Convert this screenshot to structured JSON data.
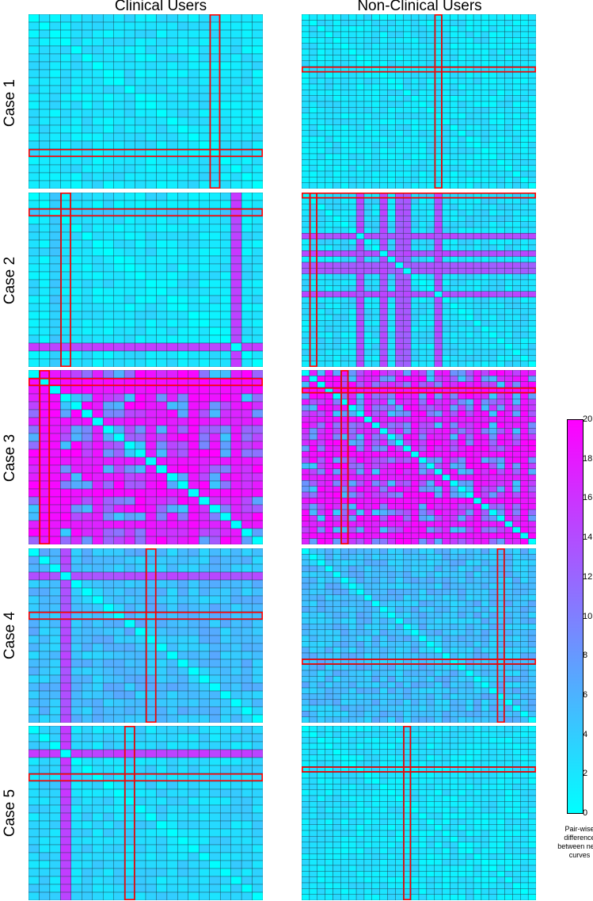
{
  "columns": [
    "Clinical Users",
    "Non-Clinical Users"
  ],
  "rows": [
    "Case 1",
    "Case 2",
    "Case 3",
    "Case 4",
    "Case 5"
  ],
  "colorbar": {
    "label": "Pair-wise difference between neck curves",
    "min": 0,
    "max": 20,
    "ticks": [
      "20",
      "18",
      "16",
      "14",
      "12",
      "10",
      "8",
      "6",
      "4",
      "2",
      "0"
    ],
    "colormap": [
      "#00ffff",
      "#ff00ff"
    ]
  },
  "highlight_color": "#ff0000",
  "chart_data": [
    {
      "type": "heatmap",
      "row": "Case 1",
      "column": "Clinical Users",
      "size": 22,
      "level": 2,
      "variation": 1.5,
      "outlier_indices": [],
      "outlier_values": [],
      "highlighted_row": 17,
      "highlighted_col": 17,
      "vmin": 0,
      "vmax": 20
    },
    {
      "type": "heatmap",
      "row": "Case 1",
      "column": "Non-Clinical Users",
      "size": 30,
      "level": 2,
      "variation": 1.5,
      "outlier_indices": [],
      "outlier_values": [],
      "highlighted_row": 9,
      "highlighted_col": 17,
      "vmin": 0,
      "vmax": 20
    },
    {
      "type": "heatmap",
      "row": "Case 2",
      "column": "Clinical Users",
      "size": 22,
      "level": 2,
      "variation": 1.5,
      "outlier_indices": [
        19,
        2
      ],
      "outlier_values": [
        15,
        4
      ],
      "highlighted_row": 2,
      "highlighted_col": 3,
      "vmin": 0,
      "vmax": 20
    },
    {
      "type": "heatmap",
      "row": "Case 2",
      "column": "Non-Clinical Users",
      "size": 30,
      "level": 2.5,
      "variation": 1.5,
      "outlier_indices": [
        10,
        13,
        17,
        7,
        12
      ],
      "outlier_values": [
        14,
        13,
        14,
        14,
        13
      ],
      "highlighted_row": 0,
      "highlighted_col": 1,
      "vmin": 0,
      "vmax": 20
    },
    {
      "type": "heatmap",
      "row": "Case 3",
      "column": "Clinical Users",
      "size": 22,
      "level": 13,
      "variation": 9,
      "outlier_indices": [
        1,
        2,
        6,
        11,
        15,
        19
      ],
      "outlier_values": [
        19,
        19,
        18,
        18,
        19,
        18
      ],
      "highlighted_row": 1,
      "highlighted_col": 1,
      "vmin": 0,
      "vmax": 20
    },
    {
      "type": "heatmap",
      "row": "Case 3",
      "column": "Non-Clinical Users",
      "size": 30,
      "level": 13,
      "variation": 9,
      "outlier_indices": [
        3,
        8,
        14,
        18,
        22,
        26,
        28
      ],
      "outlier_values": [
        19,
        18,
        19,
        18,
        19,
        18,
        19
      ],
      "highlighted_row": 3,
      "highlighted_col": 5,
      "vmin": 0,
      "vmax": 20
    },
    {
      "type": "heatmap",
      "row": "Case 4",
      "column": "Clinical Users",
      "size": 22,
      "level": 5,
      "variation": 2,
      "outlier_indices": [
        3
      ],
      "outlier_values": [
        14
      ],
      "highlighted_row": 8,
      "highlighted_col": 11,
      "vmin": 0,
      "vmax": 20
    },
    {
      "type": "heatmap",
      "row": "Case 4",
      "column": "Non-Clinical Users",
      "size": 30,
      "level": 5,
      "variation": 2,
      "outlier_indices": [],
      "outlier_values": [],
      "highlighted_row": 19,
      "highlighted_col": 25,
      "vmin": 0,
      "vmax": 20
    },
    {
      "type": "heatmap",
      "row": "Case 5",
      "column": "Clinical Users",
      "size": 22,
      "level": 3,
      "variation": 1.5,
      "outlier_indices": [
        3
      ],
      "outlier_values": [
        15
      ],
      "highlighted_row": 6,
      "highlighted_col": 9,
      "vmin": 0,
      "vmax": 20
    },
    {
      "type": "heatmap",
      "row": "Case 5",
      "column": "Non-Clinical Users",
      "size": 30,
      "level": 2,
      "variation": 1.5,
      "outlier_indices": [],
      "outlier_values": [],
      "highlighted_row": 7,
      "highlighted_col": 13,
      "vmin": 0,
      "vmax": 20
    }
  ]
}
